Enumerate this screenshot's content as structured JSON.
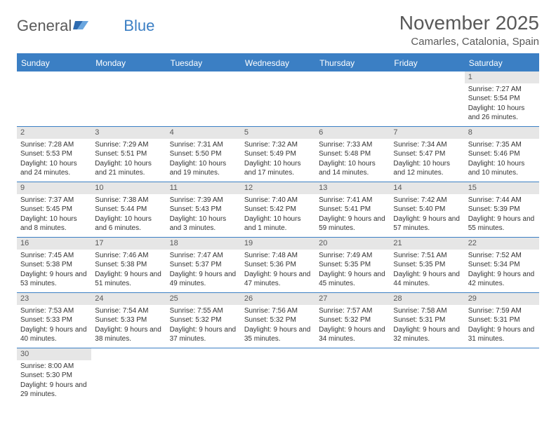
{
  "logo": {
    "text1": "General",
    "text2": "Blue"
  },
  "title": "November 2025",
  "location": "Camarles, Catalonia, Spain",
  "colors": {
    "header_bg": "#3b7fc4",
    "header_text": "#ffffff",
    "daynum_bg": "#e6e6e6",
    "daynum_text": "#595959",
    "body_text": "#333333",
    "title_text": "#595959",
    "border": "#3b7fc4"
  },
  "weekdays": [
    "Sunday",
    "Monday",
    "Tuesday",
    "Wednesday",
    "Thursday",
    "Friday",
    "Saturday"
  ],
  "weeks": [
    [
      {
        "n": "",
        "sr": "",
        "ss": "",
        "dl": ""
      },
      {
        "n": "",
        "sr": "",
        "ss": "",
        "dl": ""
      },
      {
        "n": "",
        "sr": "",
        "ss": "",
        "dl": ""
      },
      {
        "n": "",
        "sr": "",
        "ss": "",
        "dl": ""
      },
      {
        "n": "",
        "sr": "",
        "ss": "",
        "dl": ""
      },
      {
        "n": "",
        "sr": "",
        "ss": "",
        "dl": ""
      },
      {
        "n": "1",
        "sr": "Sunrise: 7:27 AM",
        "ss": "Sunset: 5:54 PM",
        "dl": "Daylight: 10 hours and 26 minutes."
      }
    ],
    [
      {
        "n": "2",
        "sr": "Sunrise: 7:28 AM",
        "ss": "Sunset: 5:53 PM",
        "dl": "Daylight: 10 hours and 24 minutes."
      },
      {
        "n": "3",
        "sr": "Sunrise: 7:29 AM",
        "ss": "Sunset: 5:51 PM",
        "dl": "Daylight: 10 hours and 21 minutes."
      },
      {
        "n": "4",
        "sr": "Sunrise: 7:31 AM",
        "ss": "Sunset: 5:50 PM",
        "dl": "Daylight: 10 hours and 19 minutes."
      },
      {
        "n": "5",
        "sr": "Sunrise: 7:32 AM",
        "ss": "Sunset: 5:49 PM",
        "dl": "Daylight: 10 hours and 17 minutes."
      },
      {
        "n": "6",
        "sr": "Sunrise: 7:33 AM",
        "ss": "Sunset: 5:48 PM",
        "dl": "Daylight: 10 hours and 14 minutes."
      },
      {
        "n": "7",
        "sr": "Sunrise: 7:34 AM",
        "ss": "Sunset: 5:47 PM",
        "dl": "Daylight: 10 hours and 12 minutes."
      },
      {
        "n": "8",
        "sr": "Sunrise: 7:35 AM",
        "ss": "Sunset: 5:46 PM",
        "dl": "Daylight: 10 hours and 10 minutes."
      }
    ],
    [
      {
        "n": "9",
        "sr": "Sunrise: 7:37 AM",
        "ss": "Sunset: 5:45 PM",
        "dl": "Daylight: 10 hours and 8 minutes."
      },
      {
        "n": "10",
        "sr": "Sunrise: 7:38 AM",
        "ss": "Sunset: 5:44 PM",
        "dl": "Daylight: 10 hours and 6 minutes."
      },
      {
        "n": "11",
        "sr": "Sunrise: 7:39 AM",
        "ss": "Sunset: 5:43 PM",
        "dl": "Daylight: 10 hours and 3 minutes."
      },
      {
        "n": "12",
        "sr": "Sunrise: 7:40 AM",
        "ss": "Sunset: 5:42 PM",
        "dl": "Daylight: 10 hours and 1 minute."
      },
      {
        "n": "13",
        "sr": "Sunrise: 7:41 AM",
        "ss": "Sunset: 5:41 PM",
        "dl": "Daylight: 9 hours and 59 minutes."
      },
      {
        "n": "14",
        "sr": "Sunrise: 7:42 AM",
        "ss": "Sunset: 5:40 PM",
        "dl": "Daylight: 9 hours and 57 minutes."
      },
      {
        "n": "15",
        "sr": "Sunrise: 7:44 AM",
        "ss": "Sunset: 5:39 PM",
        "dl": "Daylight: 9 hours and 55 minutes."
      }
    ],
    [
      {
        "n": "16",
        "sr": "Sunrise: 7:45 AM",
        "ss": "Sunset: 5:38 PM",
        "dl": "Daylight: 9 hours and 53 minutes."
      },
      {
        "n": "17",
        "sr": "Sunrise: 7:46 AM",
        "ss": "Sunset: 5:38 PM",
        "dl": "Daylight: 9 hours and 51 minutes."
      },
      {
        "n": "18",
        "sr": "Sunrise: 7:47 AM",
        "ss": "Sunset: 5:37 PM",
        "dl": "Daylight: 9 hours and 49 minutes."
      },
      {
        "n": "19",
        "sr": "Sunrise: 7:48 AM",
        "ss": "Sunset: 5:36 PM",
        "dl": "Daylight: 9 hours and 47 minutes."
      },
      {
        "n": "20",
        "sr": "Sunrise: 7:49 AM",
        "ss": "Sunset: 5:35 PM",
        "dl": "Daylight: 9 hours and 45 minutes."
      },
      {
        "n": "21",
        "sr": "Sunrise: 7:51 AM",
        "ss": "Sunset: 5:35 PM",
        "dl": "Daylight: 9 hours and 44 minutes."
      },
      {
        "n": "22",
        "sr": "Sunrise: 7:52 AM",
        "ss": "Sunset: 5:34 PM",
        "dl": "Daylight: 9 hours and 42 minutes."
      }
    ],
    [
      {
        "n": "23",
        "sr": "Sunrise: 7:53 AM",
        "ss": "Sunset: 5:33 PM",
        "dl": "Daylight: 9 hours and 40 minutes."
      },
      {
        "n": "24",
        "sr": "Sunrise: 7:54 AM",
        "ss": "Sunset: 5:33 PM",
        "dl": "Daylight: 9 hours and 38 minutes."
      },
      {
        "n": "25",
        "sr": "Sunrise: 7:55 AM",
        "ss": "Sunset: 5:32 PM",
        "dl": "Daylight: 9 hours and 37 minutes."
      },
      {
        "n": "26",
        "sr": "Sunrise: 7:56 AM",
        "ss": "Sunset: 5:32 PM",
        "dl": "Daylight: 9 hours and 35 minutes."
      },
      {
        "n": "27",
        "sr": "Sunrise: 7:57 AM",
        "ss": "Sunset: 5:32 PM",
        "dl": "Daylight: 9 hours and 34 minutes."
      },
      {
        "n": "28",
        "sr": "Sunrise: 7:58 AM",
        "ss": "Sunset: 5:31 PM",
        "dl": "Daylight: 9 hours and 32 minutes."
      },
      {
        "n": "29",
        "sr": "Sunrise: 7:59 AM",
        "ss": "Sunset: 5:31 PM",
        "dl": "Daylight: 9 hours and 31 minutes."
      }
    ],
    [
      {
        "n": "30",
        "sr": "Sunrise: 8:00 AM",
        "ss": "Sunset: 5:30 PM",
        "dl": "Daylight: 9 hours and 29 minutes."
      },
      {
        "n": "",
        "sr": "",
        "ss": "",
        "dl": ""
      },
      {
        "n": "",
        "sr": "",
        "ss": "",
        "dl": ""
      },
      {
        "n": "",
        "sr": "",
        "ss": "",
        "dl": ""
      },
      {
        "n": "",
        "sr": "",
        "ss": "",
        "dl": ""
      },
      {
        "n": "",
        "sr": "",
        "ss": "",
        "dl": ""
      },
      {
        "n": "",
        "sr": "",
        "ss": "",
        "dl": ""
      }
    ]
  ]
}
